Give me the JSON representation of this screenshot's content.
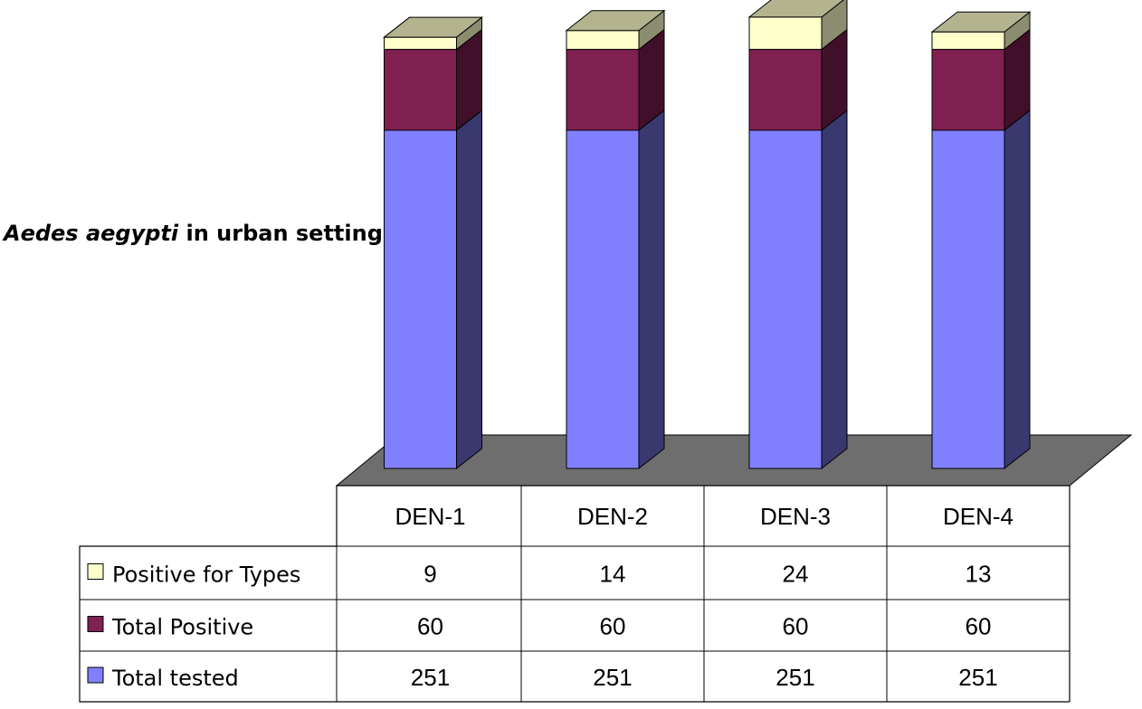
{
  "chart_data": {
    "type": "bar",
    "stacked": true,
    "style": "3d-column-with-data-table",
    "title_italic": "Aedes aegypti",
    "title_rest": " in urban setting",
    "categories": [
      "DEN-1",
      "DEN-2",
      "DEN-3",
      "DEN-4"
    ],
    "series": [
      {
        "name": "Positive for Types",
        "values": [
          9,
          14,
          24,
          13
        ],
        "color": "#FFFFCC",
        "side": "#8C8C70",
        "top": "#B3B38F"
      },
      {
        "name": "Total Positive",
        "values": [
          60,
          60,
          60,
          60
        ],
        "color": "#802050",
        "side": "#40102A",
        "top": "#602040"
      },
      {
        "name": "Total tested",
        "values": [
          251,
          251,
          251,
          251
        ],
        "color": "#8080FF",
        "side": "#393970",
        "top": "#6060C0"
      }
    ],
    "stack_order_bottom_to_top": [
      "Total tested",
      "Total Positive",
      "Positive for Types"
    ],
    "legend": "data-table-left",
    "grid": false,
    "floor_color": "#6E6E6E"
  }
}
